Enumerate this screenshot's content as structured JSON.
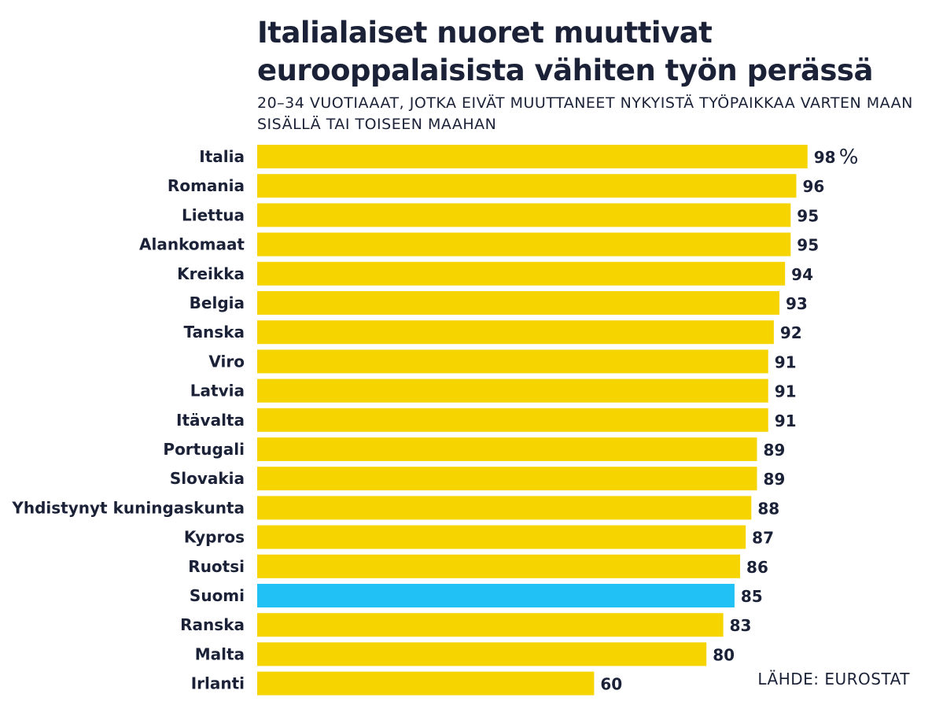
{
  "title": "Italialaiset nuoret muuttivat eurooppalaisista vähiten työn perässä",
  "subtitle": "20–34 VUOTIAAAT, JOTKA EIVÄT MUUTTANEET NYKYISTÄ TYÖPAIKKAA VARTEN MAAN SISÄLLÄ TAI TOISEEN MAAHAN",
  "source": "LÄHDE: EUROSTAT",
  "chart_data": {
    "type": "bar",
    "orientation": "horizontal",
    "unit": "%",
    "categories": [
      "Italia",
      "Romania",
      "Liettua",
      "Alankomaat",
      "Kreikka",
      "Belgia",
      "Tanska",
      "Viro",
      "Latvia",
      "Itävalta",
      "Portugali",
      "Slovakia",
      "Yhdistynyt kuningaskunta",
      "Kypros",
      "Ruotsi",
      "Suomi",
      "Ranska",
      "Malta",
      "Irlanti"
    ],
    "values": [
      98,
      96,
      95,
      95,
      94,
      93,
      92,
      91,
      91,
      91,
      89,
      89,
      88,
      87,
      86,
      85,
      83,
      80,
      60
    ],
    "highlight": "Suomi",
    "colors": {
      "bar": "#f5d400",
      "highlight": "#21c0f5",
      "text": "#1b2238"
    },
    "grid": false,
    "legend": "none"
  }
}
